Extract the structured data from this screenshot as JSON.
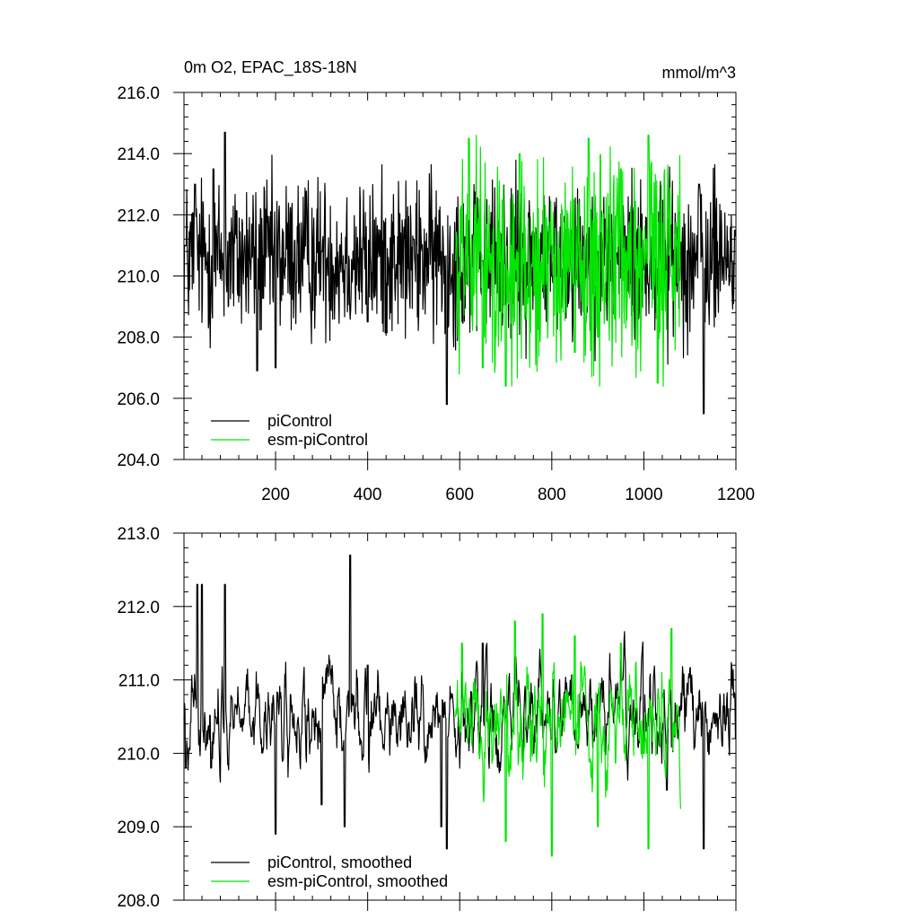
{
  "chart_data": [
    {
      "type": "line",
      "title_left": "0m O2, EPAC_18S-18N",
      "title_right": "mmol/m^3",
      "xlabel": "",
      "ylabel": "",
      "xlim": [
        1,
        1200
      ],
      "ylim": [
        204.0,
        216.0
      ],
      "x_ticks": [
        200,
        400,
        600,
        800,
        1000,
        1200
      ],
      "x_tick_labels": [
        "200",
        "400",
        "600",
        "800",
        "1000",
        "1200"
      ],
      "y_ticks": [
        204.0,
        206.0,
        208.0,
        210.0,
        212.0,
        214.0,
        216.0
      ],
      "y_tick_labels": [
        "204.0",
        "206.0",
        "208.0",
        "210.0",
        "212.0",
        "214.0",
        "216.0"
      ],
      "grid": false,
      "legend_position": "bottom-left",
      "series": [
        {
          "name": "piControl",
          "color": "#000000",
          "x_range": [
            1,
            1200
          ],
          "mean": 210.6,
          "spread": 1.3,
          "min": 205.5,
          "max": 214.7,
          "sample_x": [
            5,
            25,
            65,
            90,
            160,
            200,
            300,
            400,
            500,
            572,
            650,
            800,
            900,
            1000,
            1120,
            1130,
            1200
          ],
          "sample_y": [
            211.0,
            213.0,
            213.5,
            214.7,
            206.9,
            207.0,
            210.8,
            208.5,
            211.2,
            205.8,
            210.5,
            210.0,
            210.8,
            210.2,
            213.0,
            205.5,
            211.5
          ]
        },
        {
          "name": "esm-piControl",
          "color": "#00e600",
          "x_range": [
            590,
            1080
          ],
          "mean": 210.4,
          "spread": 1.6,
          "min": 206.4,
          "max": 214.6,
          "sample_x": [
            590,
            620,
            650,
            700,
            730,
            800,
            850,
            880,
            900,
            950,
            1000,
            1010,
            1030,
            1060,
            1080
          ],
          "sample_y": [
            210.5,
            214.5,
            207.0,
            206.4,
            214.0,
            211.0,
            207.5,
            214.5,
            208.0,
            213.5,
            210.0,
            214.6,
            206.5,
            210.0,
            210.3
          ]
        }
      ]
    },
    {
      "type": "line",
      "xlabel": "",
      "ylabel": "",
      "xlim": [
        1,
        1200
      ],
      "ylim": [
        208.0,
        213.0
      ],
      "x_ticks": [
        200,
        400,
        600,
        800,
        1000,
        1200
      ],
      "x_tick_labels": [],
      "y_ticks": [
        208.0,
        209.0,
        210.0,
        211.0,
        212.0,
        213.0
      ],
      "y_tick_labels": [
        "208.0",
        "209.0",
        "210.0",
        "211.0",
        "212.0",
        "213.0"
      ],
      "grid": false,
      "legend_position": "bottom-left",
      "series": [
        {
          "name": "piControl, smoothed",
          "color": "#000000",
          "x_range": [
            1,
            1200
          ],
          "mean": 210.5,
          "spread": 0.6,
          "min": 208.7,
          "max": 212.7,
          "sample_x": [
            5,
            30,
            40,
            60,
            90,
            200,
            300,
            350,
            362,
            400,
            500,
            560,
            572,
            650,
            700,
            800,
            900,
            1000,
            1050,
            1130,
            1200
          ],
          "sample_y": [
            209.8,
            212.3,
            212.3,
            209.8,
            212.3,
            208.9,
            209.3,
            209.0,
            212.7,
            211.2,
            210.3,
            209.0,
            208.7,
            211.5,
            210.5,
            210.2,
            210.8,
            210.0,
            209.5,
            208.7,
            210.2
          ]
        },
        {
          "name": "esm-piControl, smoothed",
          "color": "#00e600",
          "x_range": [
            590,
            1080
          ],
          "mean": 210.4,
          "spread": 0.7,
          "min": 208.6,
          "max": 211.9,
          "sample_x": [
            590,
            605,
            700,
            720,
            780,
            800,
            850,
            900,
            950,
            1000,
            1010,
            1060,
            1075
          ],
          "sample_y": [
            210.5,
            211.5,
            208.8,
            211.8,
            211.9,
            208.6,
            211.6,
            209.0,
            211.5,
            210.0,
            208.7,
            211.7,
            210.5
          ]
        }
      ]
    }
  ]
}
